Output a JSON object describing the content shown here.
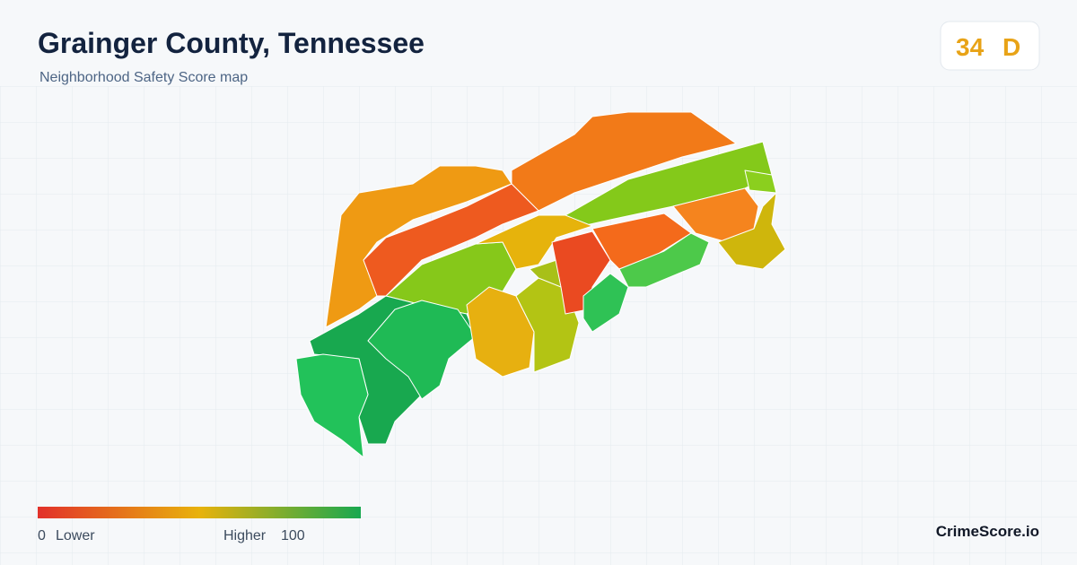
{
  "header": {
    "title": "Grainger County, Tennessee",
    "subtitle": "Neighborhood Safety Score map"
  },
  "score": {
    "value": "34",
    "grade": "D"
  },
  "legend": {
    "min": "0",
    "min_label": "Lower",
    "max_label": "Higher",
    "max": "100"
  },
  "brand": "CrimeScore.io"
}
